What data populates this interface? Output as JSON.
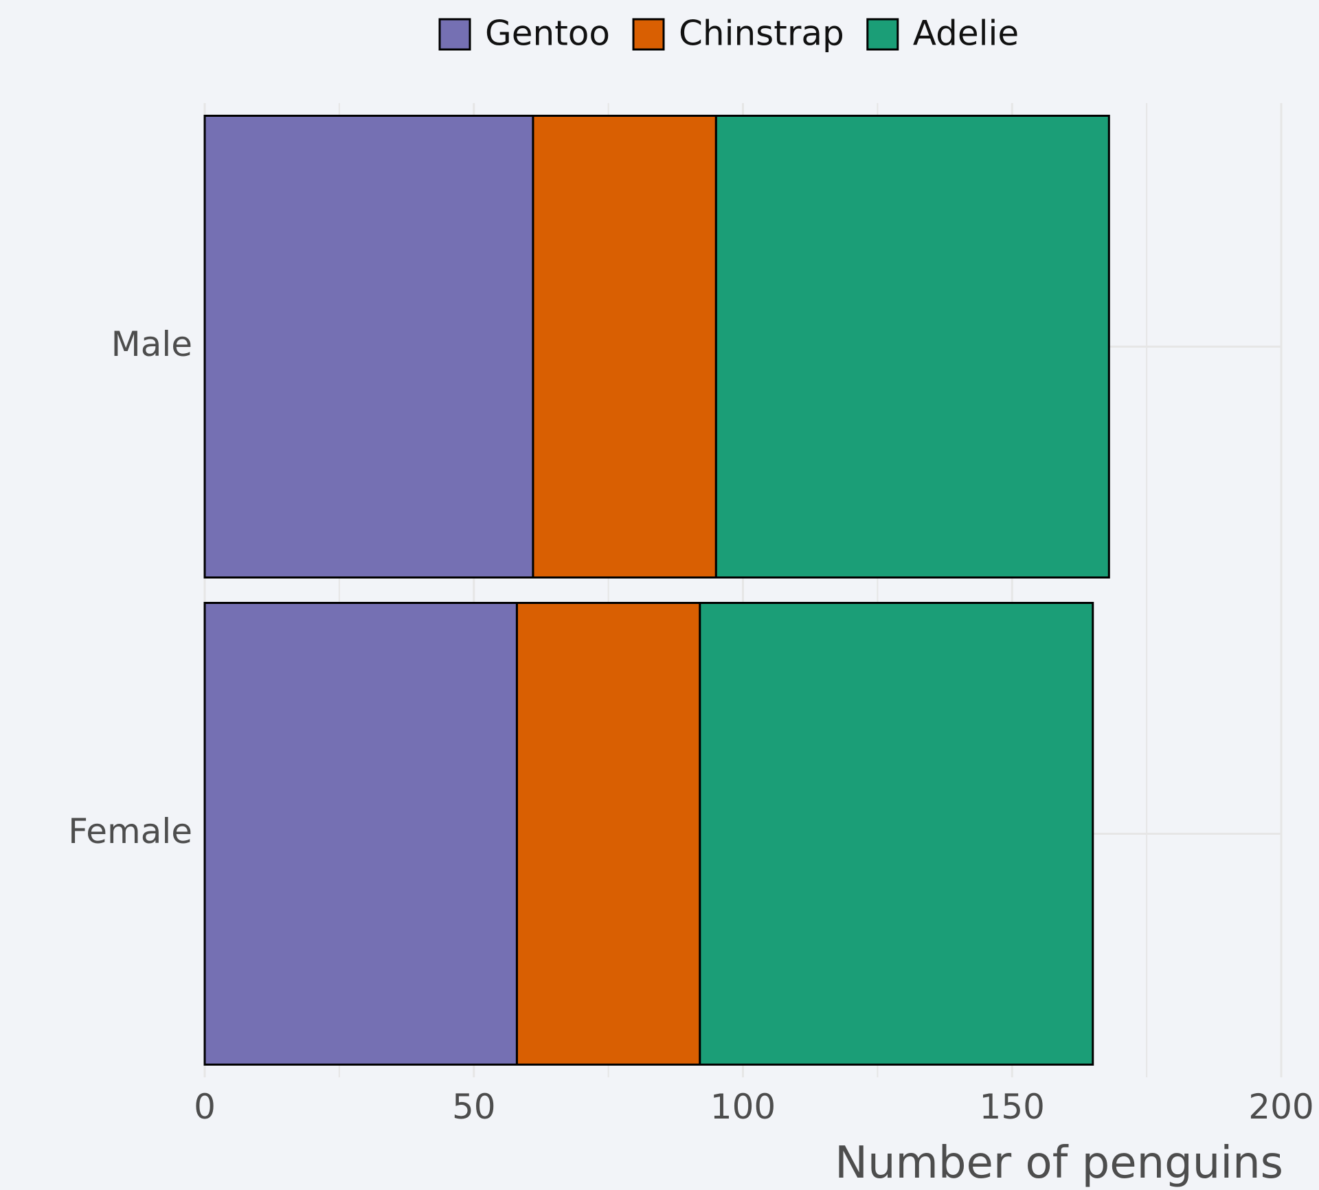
{
  "chart_data": {
    "type": "bar",
    "orientation": "horizontal",
    "stacked": true,
    "categories": [
      "Female",
      "Male"
    ],
    "series": [
      {
        "name": "Gentoo",
        "values": [
          58,
          61
        ],
        "color": "#7570b3"
      },
      {
        "name": "Chinstrap",
        "values": [
          34,
          34
        ],
        "color": "#d95f02"
      },
      {
        "name": "Adelie",
        "values": [
          73,
          73
        ],
        "color": "#1b9e77"
      }
    ],
    "xlabel": "Number of penguins",
    "ylabel": "",
    "xlim": [
      0,
      200
    ],
    "xticks": [
      "0",
      "50",
      "100",
      "150",
      "200"
    ],
    "grid": true,
    "legend_position": "top",
    "bar_outline_color": "#000000",
    "background_color": "#f2f4f8",
    "grid_color": "#e6e6e6"
  }
}
